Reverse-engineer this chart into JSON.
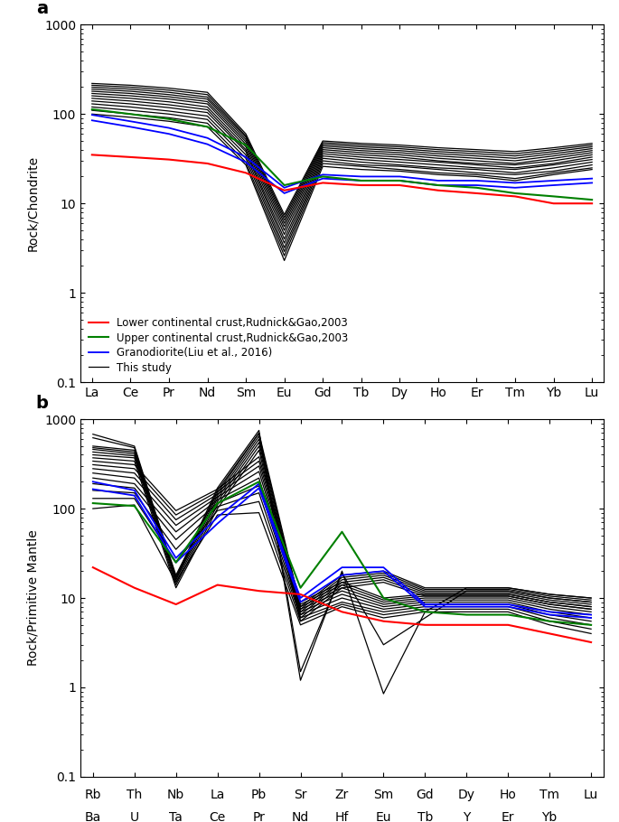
{
  "panel_a": {
    "elements": [
      "La",
      "Ce",
      "Pr",
      "Nd",
      "Sm",
      "Eu",
      "Gd",
      "Tb",
      "Dy",
      "Ho",
      "Er",
      "Tm",
      "Yb",
      "Lu"
    ],
    "ylabel": "Rock/Chondrite",
    "ylim": [
      0.1,
      1000
    ],
    "red_line": [
      35,
      33,
      31,
      28,
      22,
      14,
      17,
      16,
      16,
      14,
      13,
      12,
      10,
      10
    ],
    "green_line": [
      113,
      100,
      88,
      72,
      45,
      16,
      20,
      18,
      18,
      16,
      15,
      13,
      12,
      11
    ],
    "blue_lines": [
      [
        98,
        83,
        70,
        54,
        33,
        15,
        21,
        20,
        20,
        18,
        18,
        17,
        18,
        19
      ],
      [
        85,
        72,
        60,
        46,
        29,
        13,
        19,
        18,
        18,
        16,
        16,
        15,
        16,
        17
      ]
    ],
    "black_lines": [
      [
        220,
        210,
        195,
        175,
        60,
        7.5,
        50,
        47,
        45,
        42,
        40,
        38,
        42,
        47
      ],
      [
        210,
        200,
        185,
        165,
        57,
        7.0,
        48,
        45,
        43,
        40,
        38,
        36,
        40,
        45
      ],
      [
        200,
        190,
        175,
        155,
        55,
        6.5,
        46,
        43,
        41,
        38,
        36,
        34,
        38,
        43
      ],
      [
        190,
        180,
        165,
        147,
        52,
        6.0,
        44,
        41,
        39,
        36,
        34,
        32,
        36,
        41
      ],
      [
        180,
        170,
        156,
        138,
        49,
        5.5,
        42,
        39,
        37,
        34,
        32,
        30,
        34,
        39
      ],
      [
        170,
        160,
        147,
        130,
        46,
        5.0,
        40,
        37,
        35,
        32,
        30,
        28,
        32,
        37
      ],
      [
        160,
        150,
        137,
        120,
        43,
        4.5,
        38,
        35,
        33,
        30,
        28,
        27,
        30,
        35
      ],
      [
        150,
        140,
        127,
        112,
        40,
        4.0,
        36,
        33,
        31,
        29,
        27,
        25,
        28,
        33
      ],
      [
        140,
        130,
        118,
        104,
        38,
        3.6,
        34,
        31,
        29,
        27,
        25,
        24,
        27,
        31
      ],
      [
        130,
        120,
        108,
        95,
        35,
        3.2,
        32,
        29,
        27,
        25,
        24,
        22,
        25,
        29
      ],
      [
        120,
        110,
        100,
        87,
        32,
        2.9,
        30,
        27,
        26,
        24,
        22,
        21,
        23,
        27
      ],
      [
        110,
        100,
        91,
        79,
        29,
        2.6,
        28,
        26,
        24,
        22,
        21,
        19,
        22,
        25
      ],
      [
        100,
        92,
        83,
        72,
        27,
        2.3,
        26,
        24,
        23,
        21,
        20,
        18,
        21,
        24
      ]
    ]
  },
  "panel_b": {
    "top_labels": [
      "Rb",
      "Th",
      "Nb",
      "La",
      "Pb",
      "Sr",
      "Zr",
      "Sm",
      "Gd",
      "Dy",
      "Ho",
      "Tm",
      "Lu"
    ],
    "bot_labels": [
      "Ba",
      "U",
      "Ta",
      "Ce",
      "Pr",
      "Nd",
      "Hf",
      "Eu",
      "Tb",
      "Y",
      "Er",
      "Yb",
      ""
    ],
    "ylabel": "Rock/Primitive Mantle",
    "ylim": [
      0.1,
      1000
    ],
    "red_line": [
      22,
      13,
      8.5,
      14,
      12,
      11,
      7,
      5.5,
      5,
      5,
      5,
      4,
      3.2
    ],
    "green_line": [
      115,
      107,
      25,
      115,
      200,
      13,
      55,
      10,
      7,
      6.5,
      6.5,
      5.5,
      5
    ],
    "blue_lines": [
      [
        200,
        160,
        28,
        80,
        190,
        10,
        22,
        22,
        8.5,
        8.5,
        8.5,
        7,
        6.5
      ],
      [
        165,
        140,
        25,
        68,
        170,
        9,
        18,
        20,
        8,
        8,
        8,
        6.5,
        6
      ]
    ],
    "black_lines": [
      [
        500,
        450,
        18,
        150,
        700,
        8,
        18,
        20,
        13,
        13,
        13,
        11,
        10
      ],
      [
        480,
        430,
        17,
        140,
        650,
        7.5,
        17,
        19,
        12.5,
        12.5,
        12.5,
        10.5,
        9.5
      ],
      [
        460,
        410,
        16,
        130,
        600,
        7,
        16,
        18,
        12,
        12,
        12,
        10,
        9
      ],
      [
        430,
        390,
        15,
        120,
        550,
        6.5,
        15,
        17,
        11.5,
        11.5,
        11.5,
        9.5,
        8.5
      ],
      [
        400,
        370,
        14,
        110,
        500,
        6,
        14,
        16,
        11,
        11,
        11,
        9,
        8
      ],
      [
        370,
        340,
        13,
        100,
        450,
        5.5,
        13,
        15,
        10.5,
        10.5,
        10.5,
        8.5,
        7.5
      ],
      [
        340,
        310,
        95,
        165,
        380,
        9,
        15,
        10,
        11,
        11,
        11,
        9,
        8
      ],
      [
        310,
        280,
        85,
        155,
        340,
        8.5,
        14,
        9.5,
        10.5,
        10.5,
        10.5,
        8.5,
        7.5
      ],
      [
        280,
        250,
        75,
        145,
        300,
        8,
        13,
        9,
        10,
        10,
        10,
        8,
        7
      ],
      [
        250,
        220,
        65,
        135,
        260,
        7.5,
        12,
        8.5,
        9.5,
        9.5,
        9.5,
        7.5,
        6.5
      ],
      [
        220,
        190,
        55,
        125,
        220,
        7,
        11,
        8,
        9,
        9,
        9,
        7,
        6
      ],
      [
        190,
        170,
        45,
        115,
        180,
        6.5,
        10,
        7.5,
        8.5,
        8.5,
        8.5,
        6.5,
        5.5
      ],
      [
        160,
        150,
        35,
        105,
        150,
        6,
        9,
        7,
        8,
        8,
        8,
        6,
        5
      ],
      [
        130,
        130,
        25,
        95,
        120,
        5.5,
        8.5,
        6.5,
        7.5,
        7.5,
        7.5,
        5.5,
        4.5
      ],
      [
        100,
        110,
        15,
        85,
        90,
        5,
        8,
        6,
        7,
        7,
        7,
        5,
        4
      ]
    ],
    "black_lines_special": [
      [
        680,
        500,
        17,
        170,
        750,
        1.2,
        20,
        0.85,
        7,
        13,
        13,
        11,
        10
      ],
      [
        620,
        480,
        16,
        160,
        700,
        1.5,
        19,
        3,
        6,
        12,
        12,
        10,
        9
      ]
    ]
  },
  "legend_labels": [
    "Lower continental crust,Rudnick&Gao,2003",
    "Upper continental crust,Rudnick&Gao,2003",
    "Granodiorite(Liu et al., 2016)",
    "This study"
  ]
}
